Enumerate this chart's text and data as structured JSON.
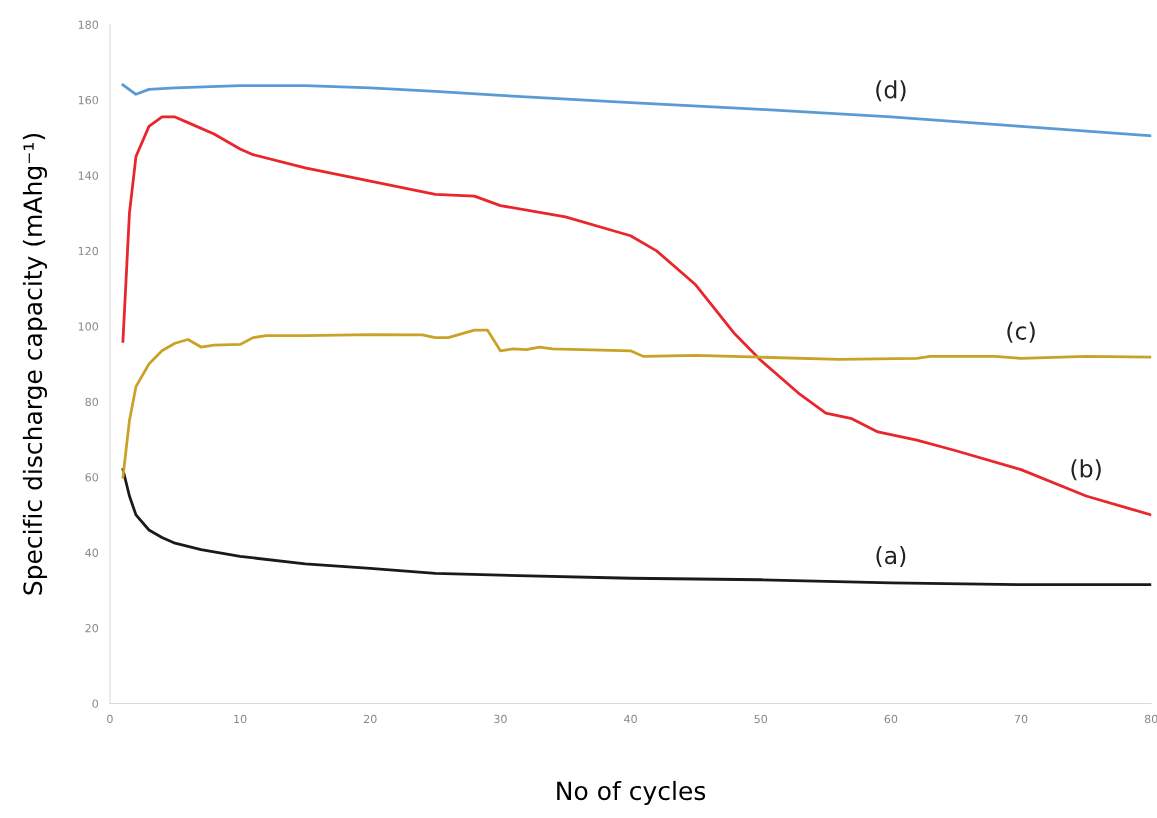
{
  "chart_data": {
    "type": "line",
    "xlabel": "No of cycles",
    "ylabel": "Specific discharge capacity (mAhg⁻¹)",
    "xlim": [
      0,
      80
    ],
    "xticks": [
      0,
      10,
      20,
      30,
      40,
      50,
      60,
      70,
      80
    ],
    "ylim": [
      0,
      180
    ],
    "yticks": [
      0,
      20,
      40,
      60,
      80,
      100,
      120,
      140,
      160,
      180
    ],
    "grid": false,
    "legend": false,
    "marker": "none",
    "line_style": "solid",
    "series": [
      {
        "name": "(a)",
        "color": "#1a1a1a",
        "x": [
          1,
          1.5,
          2,
          3,
          4,
          5,
          7,
          10,
          15,
          20,
          25,
          30,
          40,
          50,
          60,
          70,
          80
        ],
        "values": [
          62,
          55,
          50,
          46,
          44,
          42.5,
          40.8,
          39,
          37,
          35.8,
          34.5,
          34,
          33.2,
          32.8,
          32,
          31.5,
          31.5
        ]
      },
      {
        "name": "(b)",
        "color": "#e8262b",
        "x": [
          1,
          1.5,
          2,
          3,
          4,
          5,
          6,
          8,
          10,
          11,
          15,
          20,
          25,
          28,
          30,
          35,
          40,
          42,
          45,
          48,
          50,
          53,
          55,
          57,
          59,
          62,
          65,
          70,
          75,
          78,
          80
        ],
        "values": [
          96,
          130,
          145,
          153,
          155.5,
          155.5,
          154,
          151,
          147,
          145.5,
          142,
          138.5,
          135,
          134.5,
          132,
          129,
          124,
          120,
          111,
          98,
          91,
          82,
          77,
          75.5,
          72,
          69.8,
          67,
          62,
          55,
          52,
          50
        ]
      },
      {
        "name": "(c)",
        "color": "#c9a227",
        "x": [
          1,
          1.5,
          2,
          3,
          4,
          5,
          6,
          7,
          8,
          10,
          11,
          12,
          15,
          20,
          24,
          25,
          26,
          28,
          29,
          30,
          31,
          32,
          33,
          34,
          40,
          41,
          45,
          50,
          56,
          62,
          63,
          68,
          70,
          75,
          80
        ],
        "values": [
          60,
          75,
          84,
          90,
          93.5,
          95.5,
          96.5,
          94.5,
          95,
          95.2,
          97,
          97.5,
          97.5,
          97.8,
          97.7,
          97,
          97,
          99,
          99,
          93.5,
          94,
          93.8,
          94.5,
          94,
          93.5,
          92,
          92.3,
          91.8,
          91.2,
          91.5,
          92,
          92,
          91.5,
          92,
          91.8
        ]
      },
      {
        "name": "(d)",
        "color": "#5b9bd5",
        "x": [
          1,
          2,
          3,
          5,
          10,
          15,
          20,
          25,
          30,
          40,
          50,
          60,
          70,
          80
        ],
        "values": [
          164,
          161.5,
          162.8,
          163.2,
          163.8,
          163.8,
          163.2,
          162.3,
          161.2,
          159.3,
          157.5,
          155.5,
          153,
          150.5
        ]
      }
    ]
  }
}
